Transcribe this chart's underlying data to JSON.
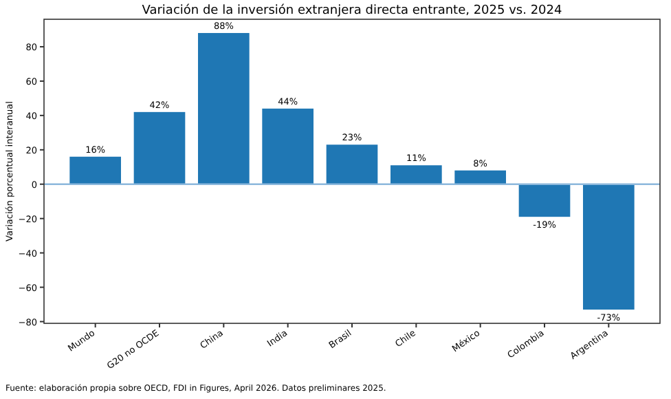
{
  "chart_data": {
    "type": "bar",
    "title": "Variación de la inversión extranjera directa entrante, 2025 vs. 2024",
    "ylabel": "Variación porcentual interanual",
    "categories": [
      "Mundo",
      "G20 no OCDE",
      "China",
      "India",
      "Brasil",
      "Chile",
      "México",
      "Colombia",
      "Argentina"
    ],
    "values": [
      16,
      42,
      88,
      44,
      23,
      11,
      8,
      -19,
      -73
    ],
    "value_labels": [
      "16%",
      "42%",
      "88%",
      "44%",
      "23%",
      "11%",
      "8%",
      "-19%",
      "-73%"
    ],
    "color": "#1f77b4",
    "ylim": [
      -81,
      96
    ],
    "yticks": [
      {
        "value": -80,
        "label": "−80"
      },
      {
        "value": -60,
        "label": "−60"
      },
      {
        "value": -40,
        "label": "−40"
      },
      {
        "value": -20,
        "label": "−20"
      },
      0,
      20,
      40,
      60,
      80
    ],
    "ref_lines": [
      {
        "axis": "y",
        "value": 0,
        "color": "#8cb8dc"
      }
    ],
    "annotations": [
      "Fuente: elaboración propia sobre OECD, FDI in Figures, April 2026. Datos preliminares 2025."
    ]
  }
}
